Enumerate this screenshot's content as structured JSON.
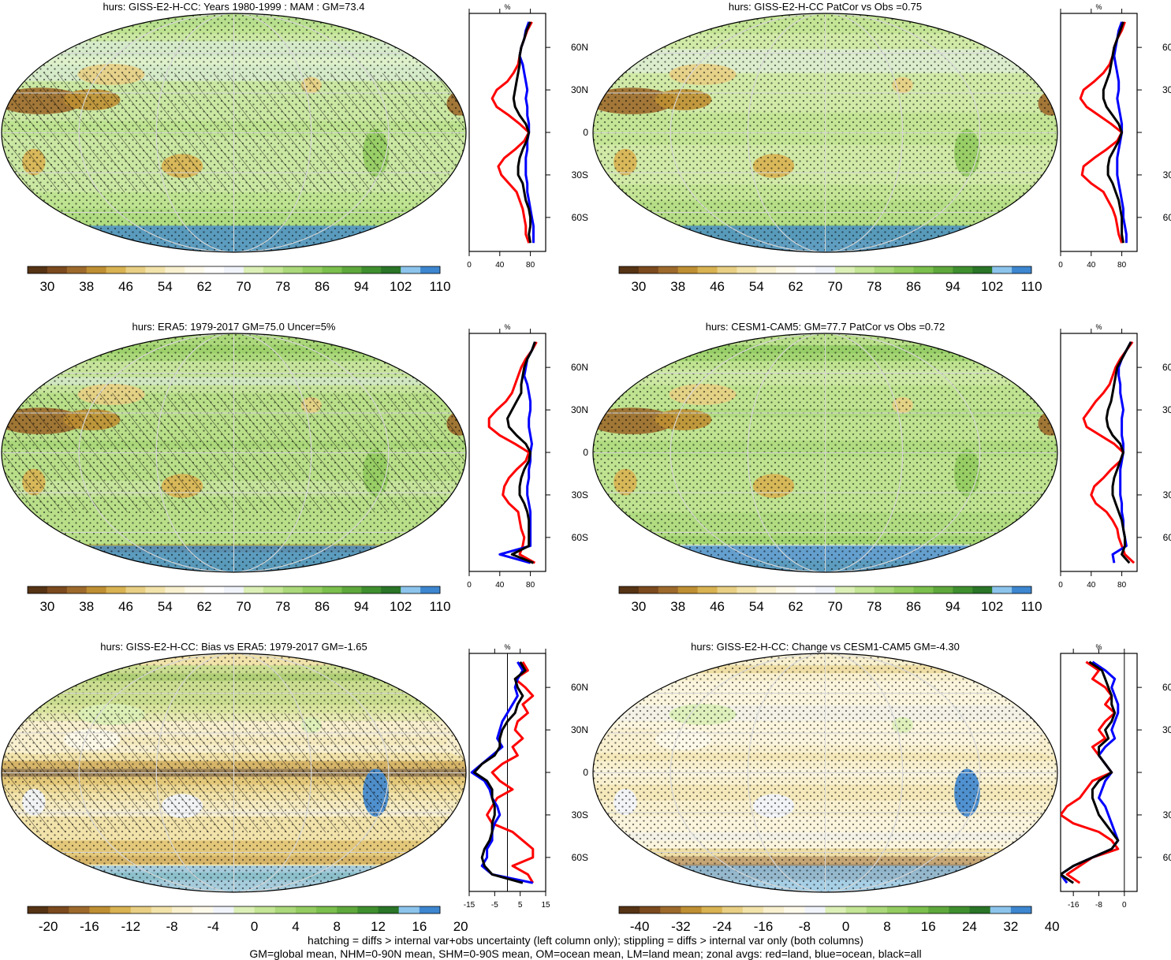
{
  "chart_data": {
    "type": "map-panels",
    "palettes": {
      "abs": [
        "#553314",
        "#7b4a1e",
        "#9d6a2c",
        "#bf8f33",
        "#d9b252",
        "#e8cf84",
        "#f2e3ab",
        "#f8f0cf",
        "#fdfaeb",
        "#ffffff",
        "#f1f4fb",
        "#dcefb7",
        "#c4e595",
        "#abd87a",
        "#94cc61",
        "#7bbf4d",
        "#5fa83c",
        "#3f8f2f",
        "#2a7527",
        "#8cc4ec",
        "#3d86d0"
      ],
      "diff": [
        "#553314",
        "#7b4a1e",
        "#9d6a2c",
        "#bf8f33",
        "#d9b252",
        "#e8cf84",
        "#f2e3ab",
        "#f8f0cf",
        "#fdfaeb",
        "#f1f4fb",
        "#dcefb7",
        "#c4e595",
        "#abd87a",
        "#94cc61",
        "#7bbf4d",
        "#5fa83c",
        "#3f8f2f",
        "#2a7527",
        "#8cc4ec",
        "#3d86d0"
      ]
    },
    "series_colors": {
      "land": "#ff0000",
      "ocean": "#0000ff",
      "all": "#000000"
    },
    "lat_axis_labels": [
      "60N",
      "30N",
      "0",
      "30S",
      "60S"
    ],
    "lat_axis_values": [
      60,
      30,
      0,
      -30,
      -60
    ],
    "panels": [
      {
        "title": "hurs: GISS-E2-H-CC: Years 1980-1999 : MAM : GM=73.4",
        "base": "#b7df8d",
        "palette": "abs",
        "colorbar_labels": [
          "30",
          "38",
          "46",
          "54",
          "62",
          "70",
          "78",
          "86",
          "94",
          "102",
          "110"
        ],
        "zonal_xlabel": "%",
        "zonal_xticks": [
          "0",
          "40",
          "80"
        ],
        "zonal_xtick_values": [
          0,
          40,
          80
        ],
        "zonal_xlim": [
          0,
          100
        ],
        "ref_line_x": null,
        "hatching": true,
        "stipple": true,
        "land_lat": [
          78,
          72,
          66,
          60,
          54,
          48,
          42,
          36,
          30,
          24,
          18,
          12,
          6,
          0,
          -6,
          -12,
          -18,
          -24,
          -30,
          -36,
          -42,
          -48,
          -54,
          -60,
          -66,
          -72,
          -78
        ],
        "land": [
          82,
          76,
          72,
          68,
          66,
          64,
          58,
          50,
          36,
          30,
          36,
          52,
          66,
          78,
          72,
          60,
          46,
          38,
          42,
          52,
          62,
          66,
          70,
          72,
          74,
          74,
          78
        ],
        "ocean": [
          78,
          74,
          72,
          68,
          66,
          70,
          72,
          74,
          76,
          74,
          76,
          76,
          78,
          78,
          76,
          76,
          74,
          74,
          74,
          76,
          76,
          78,
          80,
          82,
          84,
          84,
          84
        ],
        "all": [
          80,
          75,
          72,
          68,
          66,
          66,
          64,
          62,
          60,
          58,
          60,
          66,
          74,
          78,
          75,
          70,
          66,
          64,
          64,
          70,
          72,
          74,
          78,
          80,
          80,
          78,
          80
        ]
      },
      {
        "title": "hurs: GISS-E2-H-CC PatCor vs Obs =0.75",
        "base": "#c4e595",
        "palette": "abs",
        "colorbar_labels": [
          "30",
          "38",
          "46",
          "54",
          "62",
          "70",
          "78",
          "86",
          "94",
          "102",
          "110"
        ],
        "zonal_xlabel": "%",
        "zonal_xticks": [
          "0",
          "40",
          "80"
        ],
        "zonal_xtick_values": [
          0,
          40,
          80
        ],
        "zonal_xlim": [
          0,
          100
        ],
        "ref_line_x": null,
        "hatching": false,
        "stipple": true,
        "land_lat": [
          78,
          72,
          66,
          60,
          54,
          48,
          42,
          36,
          30,
          24,
          18,
          12,
          6,
          0,
          -6,
          -12,
          -18,
          -24,
          -30,
          -36,
          -42,
          -48,
          -54,
          -60,
          -66,
          -72,
          -78
        ],
        "land": [
          84,
          80,
          74,
          70,
          68,
          64,
          56,
          44,
          30,
          26,
          34,
          50,
          66,
          80,
          74,
          60,
          44,
          30,
          28,
          40,
          56,
          62,
          68,
          72,
          74,
          76,
          80
        ],
        "ocean": [
          80,
          76,
          74,
          72,
          70,
          72,
          74,
          76,
          76,
          74,
          76,
          78,
          80,
          80,
          78,
          76,
          74,
          74,
          74,
          76,
          78,
          80,
          82,
          82,
          84,
          86,
          86
        ],
        "all": [
          82,
          78,
          74,
          70,
          68,
          66,
          64,
          60,
          56,
          56,
          60,
          68,
          76,
          80,
          76,
          70,
          64,
          62,
          62,
          68,
          72,
          76,
          78,
          80,
          80,
          80,
          82
        ]
      },
      {
        "title": "hurs: ERA5: 1979-2017 GM=75.0 Uncer=5%",
        "base": "#abd87a",
        "palette": "abs",
        "colorbar_labels": [
          "30",
          "38",
          "46",
          "54",
          "62",
          "70",
          "78",
          "86",
          "94",
          "102",
          "110"
        ],
        "zonal_xlabel": "%",
        "zonal_xticks": [
          "0",
          "40",
          "80"
        ],
        "zonal_xtick_values": [
          0,
          40,
          80
        ],
        "zonal_xlim": [
          0,
          100
        ],
        "ref_line_x": null,
        "hatching": true,
        "stipple": true,
        "land_lat": [
          78,
          72,
          66,
          60,
          54,
          48,
          42,
          36,
          30,
          24,
          18,
          12,
          6,
          0,
          -6,
          -12,
          -18,
          -24,
          -30,
          -36,
          -42,
          -48,
          -54,
          -60,
          -66,
          -72,
          -78
        ],
        "land": [
          88,
          82,
          74,
          68,
          64,
          60,
          56,
          48,
          36,
          26,
          26,
          40,
          60,
          78,
          74,
          62,
          52,
          46,
          44,
          52,
          64,
          66,
          68,
          72,
          70,
          66,
          86
        ],
        "ocean": [
          86,
          82,
          76,
          74,
          72,
          76,
          78,
          80,
          80,
          78,
          78,
          80,
          82,
          80,
          80,
          78,
          78,
          76,
          76,
          78,
          80,
          80,
          80,
          80,
          80,
          40,
          80
        ],
        "all": [
          86,
          82,
          76,
          72,
          70,
          68,
          68,
          62,
          56,
          50,
          52,
          62,
          74,
          80,
          78,
          72,
          68,
          66,
          66,
          72,
          76,
          78,
          78,
          78,
          78,
          56,
          84
        ]
      },
      {
        "title": "hurs: CESM1-CAM5: GM=77.7 PatCor vs Obs =0.72",
        "base": "#b9df8a",
        "palette": "abs",
        "colorbar_labels": [
          "30",
          "38",
          "46",
          "54",
          "62",
          "70",
          "78",
          "86",
          "94",
          "102",
          "110"
        ],
        "zonal_xlabel": "%",
        "zonal_xticks": [
          "0",
          "40",
          "80"
        ],
        "zonal_xtick_values": [
          0,
          40,
          80
        ],
        "zonal_xlim": [
          0,
          100
        ],
        "ref_line_x": null,
        "hatching": false,
        "stipple": true,
        "land_lat": [
          78,
          72,
          66,
          60,
          54,
          48,
          42,
          36,
          30,
          24,
          18,
          12,
          6,
          0,
          -6,
          -12,
          -18,
          -24,
          -30,
          -36,
          -42,
          -48,
          -54,
          -60,
          -66,
          -72,
          -78
        ],
        "land": [
          94,
          86,
          78,
          72,
          68,
          64,
          56,
          46,
          38,
          30,
          34,
          52,
          70,
          82,
          78,
          66,
          56,
          44,
          40,
          46,
          60,
          68,
          74,
          76,
          80,
          84,
          96
        ],
        "ocean": [
          92,
          86,
          80,
          76,
          76,
          78,
          78,
          80,
          82,
          80,
          80,
          80,
          82,
          82,
          80,
          78,
          78,
          78,
          78,
          80,
          80,
          82,
          82,
          84,
          86,
          68,
          70
        ],
        "all": [
          92,
          86,
          80,
          74,
          72,
          70,
          68,
          66,
          62,
          60,
          62,
          68,
          78,
          82,
          78,
          74,
          70,
          68,
          68,
          72,
          76,
          80,
          82,
          84,
          84,
          80,
          90
        ]
      },
      {
        "title": "hurs: GISS-E2-H-CC: Bias vs ERA5: 1979-2017 GM=-1.65",
        "base": "#f2e3ab",
        "palette": "diff",
        "colorbar_labels": [
          "-20",
          "-16",
          "-12",
          "-8",
          "-4",
          "0",
          "4",
          "8",
          "12",
          "16",
          "20"
        ],
        "zonal_xlabel": "%",
        "zonal_xticks": [
          "-15",
          "-5",
          "5",
          "15"
        ],
        "zonal_xtick_values": [
          -15,
          -5,
          5,
          15
        ],
        "zonal_xlim": [
          -15,
          15
        ],
        "ref_line_x": 0,
        "hatching": true,
        "stipple": true,
        "land_lat": [
          78,
          72,
          66,
          60,
          54,
          48,
          42,
          36,
          30,
          24,
          18,
          12,
          6,
          0,
          -6,
          -12,
          -18,
          -24,
          -30,
          -36,
          -42,
          -48,
          -54,
          -60,
          -66,
          -72,
          -78
        ],
        "land": [
          6,
          8,
          3,
          7,
          10,
          6,
          8,
          4,
          3,
          6,
          2,
          4,
          -2,
          -6,
          -3,
          2,
          -4,
          -6,
          -8,
          -6,
          2,
          6,
          10,
          10,
          2,
          8,
          10
        ],
        "ocean": [
          4,
          6,
          4,
          3,
          4,
          2,
          0,
          -2,
          -3,
          -4,
          -2,
          -6,
          -10,
          -14,
          -9,
          -7,
          -6,
          -4,
          -3,
          -5,
          -6,
          -6,
          -8,
          -8,
          -10,
          -6,
          10
        ],
        "all": [
          5,
          7,
          3,
          4,
          6,
          4,
          3,
          0,
          -2,
          -3,
          -3,
          -5,
          -10,
          -13,
          -8,
          -6,
          -6,
          -5,
          -5,
          -6,
          -6,
          -7,
          -9,
          -10,
          -9,
          -6,
          6
        ]
      },
      {
        "title": "hurs: GISS-E2-H-CC: Change vs CESM1-CAM5 GM=-4.30",
        "base": "#f8f0cf",
        "palette": "diff",
        "colorbar_labels": [
          "-40",
          "-32",
          "-24",
          "-16",
          "-8",
          "0",
          "8",
          "16",
          "24",
          "32",
          "40"
        ],
        "zonal_xlabel": "%",
        "zonal_xticks": [
          "-16",
          "-8",
          "0"
        ],
        "zonal_xtick_values": [
          -16,
          -8,
          0
        ],
        "zonal_xlim": [
          -20,
          4
        ],
        "ref_line_x": 0,
        "hatching": false,
        "stipple": true,
        "land_lat": [
          78,
          72,
          66,
          60,
          54,
          48,
          42,
          36,
          30,
          24,
          18,
          12,
          6,
          0,
          -6,
          -12,
          -18,
          -24,
          -30,
          -36,
          -42,
          -48,
          -54,
          -60,
          -66,
          -72,
          -78
        ],
        "land": [
          -12,
          -8,
          -10,
          -6,
          -4,
          -6,
          -3,
          -6,
          -8,
          -6,
          -10,
          -8,
          -6,
          -4,
          -10,
          -12,
          -14,
          -18,
          -20,
          -16,
          -8,
          -4,
          -2,
          -10,
          -14,
          -18,
          -14
        ],
        "ocean": [
          -10,
          -6,
          -3,
          -4,
          -3,
          -2,
          -2,
          -3,
          -4,
          -3,
          -6,
          -8,
          -6,
          -4,
          -6,
          -7,
          -8,
          -6,
          -5,
          -4,
          -3,
          -2,
          -4,
          -10,
          -16,
          -20,
          -18
        ],
        "all": [
          -11,
          -7,
          -6,
          -5,
          -4,
          -4,
          -3,
          -4,
          -6,
          -5,
          -8,
          -8,
          -6,
          -4,
          -8,
          -10,
          -10,
          -9,
          -8,
          -6,
          -4,
          -2,
          -4,
          -10,
          -16,
          -20,
          -16
        ]
      }
    ]
  },
  "footnote": {
    "line1": "hatching = diffs > internal var+obs uncertainty (left column only); stippling = diffs > internal var only (both columns)",
    "line2": "GM=global mean, NHM=0-90N mean, SHM=0-90S mean, OM=ocean mean, LM=land mean; zonal avgs: red=land, blue=ocean, black=all"
  }
}
